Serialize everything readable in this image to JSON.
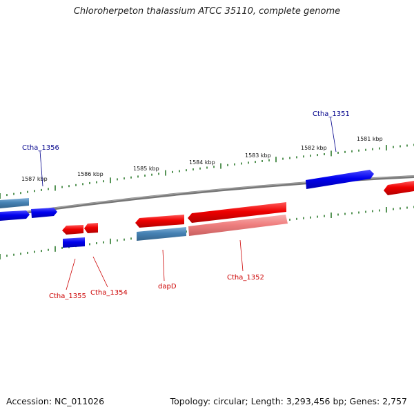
{
  "title": "Chloroherpeton thalassium ATCC 35110, complete genome",
  "footer": {
    "accession": "Accession: NC_011026",
    "summary": "Topology: circular; Length: 3,293,456 bp; Genes: 2,757"
  },
  "colors": {
    "backbone": "#808080",
    "tick": "#2d7a2d",
    "forward_gene": "#0000ee",
    "forward_gene_alt": "#4682b4",
    "reverse_gene": "#ee0000",
    "reverse_gene_alt": "#f08080",
    "forward_label": "#00008b",
    "reverse_label": "#cc0000"
  },
  "kbp_labels": [
    "1587 kbp",
    "1586 kbp",
    "1585 kbp",
    "1584 kbp",
    "1583 kbp",
    "1582 kbp",
    "1581 kbp"
  ],
  "gene_labels": {
    "ctha_1356": "Ctha_1356",
    "ctha_1351": "Ctha_1351",
    "ctha_1355": "Ctha_1355",
    "ctha_1354": "Ctha_1354",
    "dapd": "dapD",
    "ctha_1352": "Ctha_1352"
  }
}
